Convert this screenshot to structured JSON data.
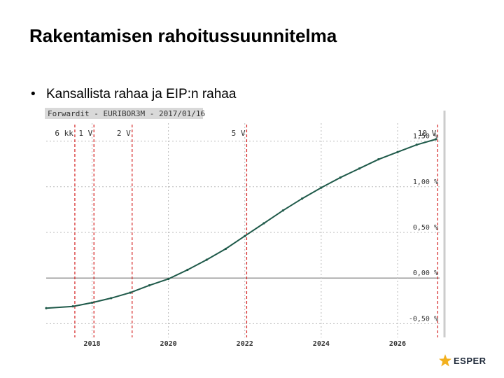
{
  "slide": {
    "title": "Rakentamisen rahoitussuunnitelma",
    "bullet": "Kansallista rahaa ja EIP:n rahaa"
  },
  "chart_data": {
    "type": "line",
    "title": "Forwardit - EURIBOR3M - 2017/01/16",
    "x_ticks": [
      "2018",
      "2020",
      "2022",
      "2024",
      "2026"
    ],
    "xlim": [
      2016.8,
      2027.1
    ],
    "ylim": [
      -0.65,
      1.65
    ],
    "y_ticks": [
      {
        "value": 1.5,
        "label": "1,50 %"
      },
      {
        "value": 1.0,
        "label": "1,00 %"
      },
      {
        "value": 0.5,
        "label": "0,50 %"
      },
      {
        "value": 0.0,
        "label": "0,00 %"
      },
      {
        "value": -0.5,
        "label": "-0,50 %"
      }
    ],
    "maturity_markers": [
      {
        "label": "6 kk",
        "x": 2017.55
      },
      {
        "label": "1 V",
        "x": 2018.05
      },
      {
        "label": "2 V",
        "x": 2019.05
      },
      {
        "label": "5 V",
        "x": 2022.05
      },
      {
        "label": "10 V",
        "x": 2027.05
      }
    ],
    "series": [
      {
        "x": [
          2016.8,
          2017.5,
          2018.0,
          2018.5,
          2019.0,
          2019.5,
          2020.0,
          2020.5,
          2021.0,
          2021.5,
          2022.0,
          2022.5,
          2023.0,
          2023.5,
          2024.0,
          2024.5,
          2025.0,
          2025.5,
          2026.0,
          2026.5,
          2027.0
        ],
        "y": [
          -0.33,
          -0.31,
          -0.27,
          -0.22,
          -0.16,
          -0.08,
          -0.01,
          0.09,
          0.2,
          0.32,
          0.46,
          0.6,
          0.74,
          0.87,
          0.99,
          1.1,
          1.2,
          1.3,
          1.38,
          1.46,
          1.52
        ]
      }
    ],
    "grid": true,
    "colors": {
      "line": "#1f5a4a",
      "marker_line": "#d42020",
      "zero_line": "#999999",
      "grid": "#bbbbbb",
      "title_bg": "#d9d9d9"
    }
  },
  "logo": {
    "text": "ESPER"
  }
}
